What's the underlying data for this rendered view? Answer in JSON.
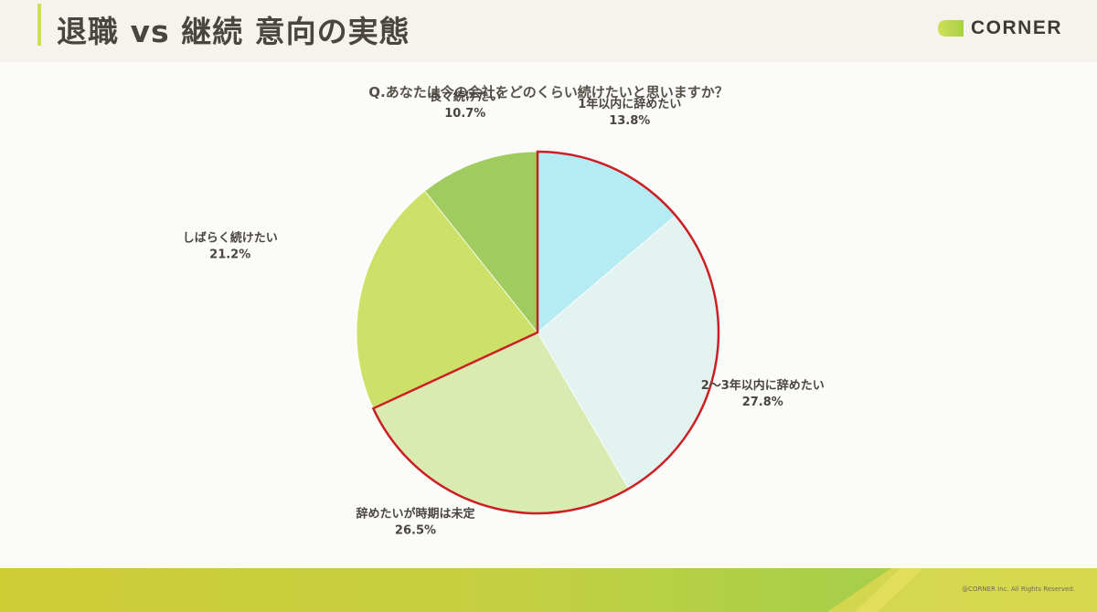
{
  "header": {
    "title": "退職 vs 継続 意向の実態",
    "brand_name": "CORNER"
  },
  "footer": {
    "copyright": "@CORNER Inc. All Rights Reserved."
  },
  "colors": {
    "accent": "#cfe056",
    "highlight_outline": "#cc1f25",
    "footer_gradient": [
      "#cfcb35",
      "#a8cf4a",
      "#e3d950"
    ]
  },
  "chart_data": {
    "type": "pie",
    "title": "Q.あなたは今の会社をどのくらい続けたいと思いますか？",
    "start": "12 o'clock",
    "direction": "clockwise",
    "categories": [
      "1年以内に辞めたい",
      "2〜3年以内に辞めたい",
      "辞めたいが時期は未定",
      "しばらく続けたい",
      "長く続けたい"
    ],
    "values": [
      13.8,
      27.8,
      26.5,
      21.2,
      10.7
    ],
    "labels": [
      "13.8%",
      "27.8%",
      "26.5%",
      "21.2%",
      "10.7%"
    ],
    "colors": [
      "#b5ebf3",
      "#e3f3ef",
      "#daebb1",
      "#cde067",
      "#9fcb5f"
    ],
    "highlighted": [
      0,
      1,
      2
    ]
  }
}
